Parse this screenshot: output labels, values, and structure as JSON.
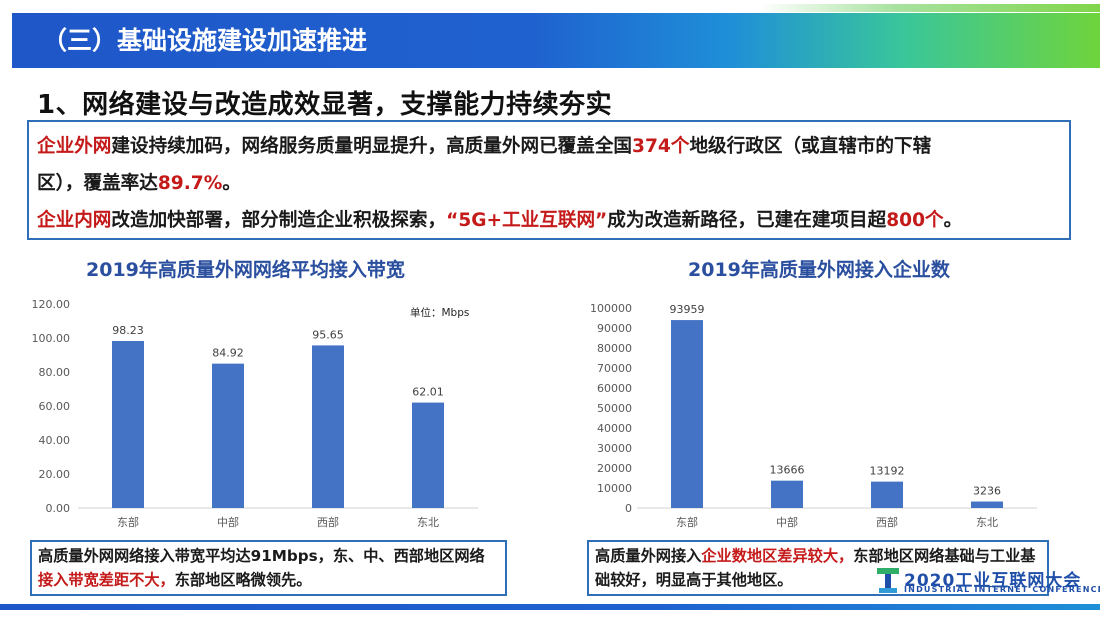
{
  "header": {
    "title": "（三）基础设施建设加速推进"
  },
  "subheading": "1、网络建设与改造成效显著，支撑能力持续夯实",
  "summary": {
    "line1": [
      {
        "text": "企业外网",
        "red": true
      },
      {
        "text": "建设持续加码，网络服务质量明显提升，高质量外网已覆盖全国",
        "red": false
      },
      {
        "text": "374个",
        "red": true
      },
      {
        "text": "地级行政区（或直辖市的下辖",
        "red": false
      }
    ],
    "line2": [
      {
        "text": "区），覆盖率达",
        "red": false
      },
      {
        "text": "89.7%",
        "red": true
      },
      {
        "text": "。",
        "red": false
      }
    ],
    "line3": [
      {
        "text": "企业内网",
        "red": true
      },
      {
        "text": "改造加快部署，部分制造企业积极探索，",
        "red": false
      },
      {
        "text": "“5G+工业互联网”",
        "red": true
      },
      {
        "text": "成为改造新路径，已建在建项目超",
        "red": false
      },
      {
        "text": "800个",
        "red": true
      },
      {
        "text": "。",
        "red": false
      }
    ]
  },
  "chart_data": [
    {
      "type": "bar",
      "title": "2019年高质量外网网络平均接入带宽",
      "unit_note": "单位：Mbps",
      "categories": [
        "东部",
        "中部",
        "西部",
        "东北"
      ],
      "values": [
        98.23,
        84.92,
        95.65,
        62.01
      ],
      "value_labels": [
        "98.23",
        "84.92",
        "95.65",
        "62.01"
      ],
      "ylim": [
        0,
        120
      ],
      "yticks": [
        "0.00",
        "20.00",
        "40.00",
        "60.00",
        "80.00",
        "100.00",
        "120.00"
      ],
      "grid": false,
      "bar_color": "#4472c4"
    },
    {
      "type": "bar",
      "title": "2019年高质量外网接入企业数",
      "categories": [
        "东部",
        "中部",
        "西部",
        "东北"
      ],
      "values": [
        93959,
        13666,
        13192,
        3236
      ],
      "value_labels": [
        "93959",
        "13666",
        "13192",
        "3236"
      ],
      "ylim": [
        0,
        100000
      ],
      "yticks": [
        "0",
        "10000",
        "20000",
        "30000",
        "40000",
        "50000",
        "60000",
        "70000",
        "80000",
        "90000",
        "100000"
      ],
      "grid": false,
      "bar_color": "#4472c4"
    }
  ],
  "captions": {
    "left": [
      {
        "text": "高质量外网网络接入带宽平均达91Mbps，东、中、西部地区网络",
        "red": false
      },
      {
        "text": "接入带宽差距不大，",
        "red": true
      },
      {
        "text": "东部地区略微领先。",
        "red": false
      }
    ],
    "right": [
      {
        "text": "高质量外网接入",
        "red": false
      },
      {
        "text": "企业数地区差异较大，",
        "red": true
      },
      {
        "text": "东部地区网络基础与工业基础较好，明显高于其他地区。",
        "red": false
      }
    ]
  },
  "logo": {
    "main": "2020工业互联网大会",
    "sub": "INDUSTRIAL INTERNET CONFERENCE"
  }
}
